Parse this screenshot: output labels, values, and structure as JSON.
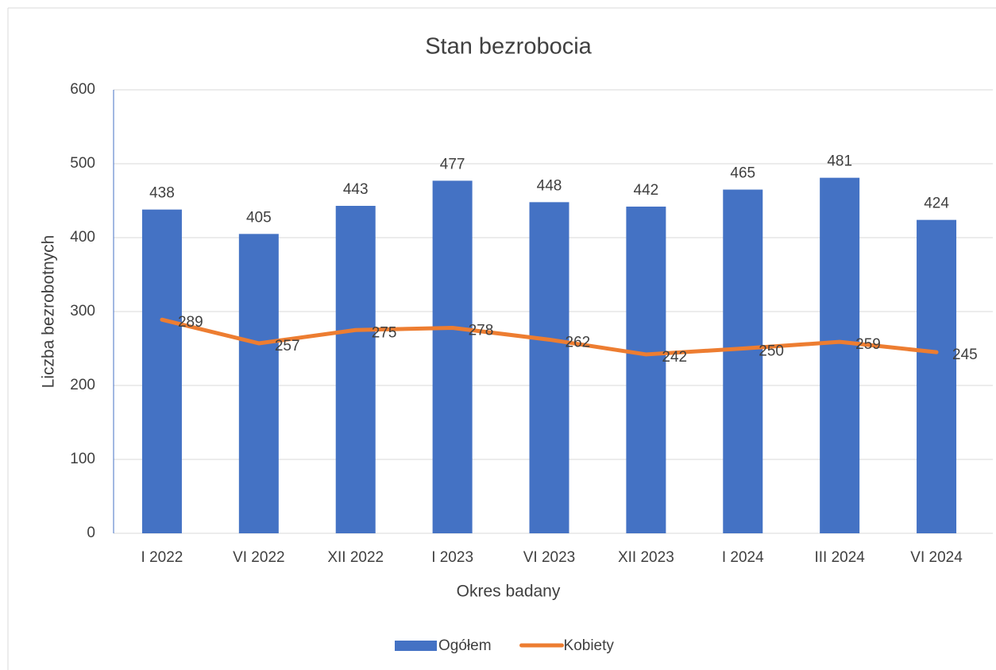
{
  "chart_data": {
    "type": "bar",
    "title": "Stan bezrobocia",
    "xlabel": "Okres badany",
    "ylabel": "Liczba bezrobotnych",
    "categories": [
      "I 2022",
      "VI 2022",
      "XII 2022",
      "I 2023",
      "VI 2023",
      "XII 2023",
      "I 2024",
      "III 2024",
      "VI 2024"
    ],
    "series": [
      {
        "name": "Ogółem",
        "type": "bar",
        "color": "#4472c4",
        "values": [
          438,
          405,
          443,
          477,
          448,
          442,
          465,
          481,
          424
        ]
      },
      {
        "name": "Kobiety",
        "type": "line",
        "color": "#ed7d31",
        "values": [
          289,
          257,
          275,
          278,
          262,
          242,
          250,
          259,
          245
        ]
      }
    ],
    "ylim": [
      0,
      600
    ],
    "yticks": [
      0,
      100,
      200,
      300,
      400,
      500,
      600
    ],
    "grid": true,
    "legend": "bottom"
  }
}
